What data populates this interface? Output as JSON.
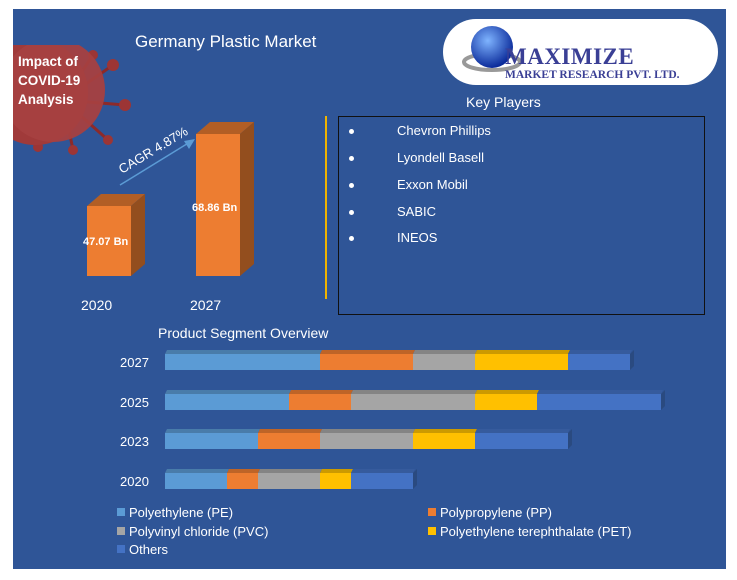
{
  "title": "Germany  Plastic Market",
  "covid_badge": [
    "Impact of",
    "COVID-19",
    "Analysis"
  ],
  "logo": {
    "main": "MAXIMIZE",
    "sub": "MARKET RESEARCH PVT. LTD."
  },
  "key_players": {
    "title": "Key Players",
    "items": [
      "Chevron Phillips",
      "Lyondell Basell",
      "Exxon Mobil",
      "SABIC",
      "INEOS"
    ]
  },
  "segment_title": "Product Segment Overview",
  "chart_data": [
    {
      "type": "bar",
      "title": "Germany  Plastic Market",
      "categories": [
        "2020",
        "2027"
      ],
      "values": [
        47.07,
        68.86
      ],
      "data_labels": [
        "47.07  Bn",
        "68.86  Bn"
      ],
      "unit": "Bn",
      "annotation": "CAGR 4.87%",
      "color": "#ed7d31"
    },
    {
      "type": "bar",
      "orientation": "horizontal",
      "stacked": true,
      "title": "Product Segment Overview",
      "categories": [
        "2027",
        "2025",
        "2023",
        "2020"
      ],
      "series": [
        {
          "name": "Polyethylene (PE)",
          "color": "#5b9bd5",
          "values": [
            5,
            4,
            3,
            2
          ]
        },
        {
          "name": "Polypropylene (PP)",
          "color": "#ed7d31",
          "values": [
            3,
            2,
            2,
            1
          ]
        },
        {
          "name": "Polyvinyl chloride (PVC)",
          "color": "#a5a5a5",
          "values": [
            2,
            4,
            3,
            2
          ]
        },
        {
          "name": "Polyethylene terephthalate (PET)",
          "color": "#ffc000",
          "values": [
            3,
            2,
            2,
            1
          ]
        },
        {
          "name": "Others",
          "color": "#4472c4",
          "values": [
            2,
            4,
            3,
            2
          ]
        }
      ],
      "legend_position": "bottom"
    }
  ]
}
